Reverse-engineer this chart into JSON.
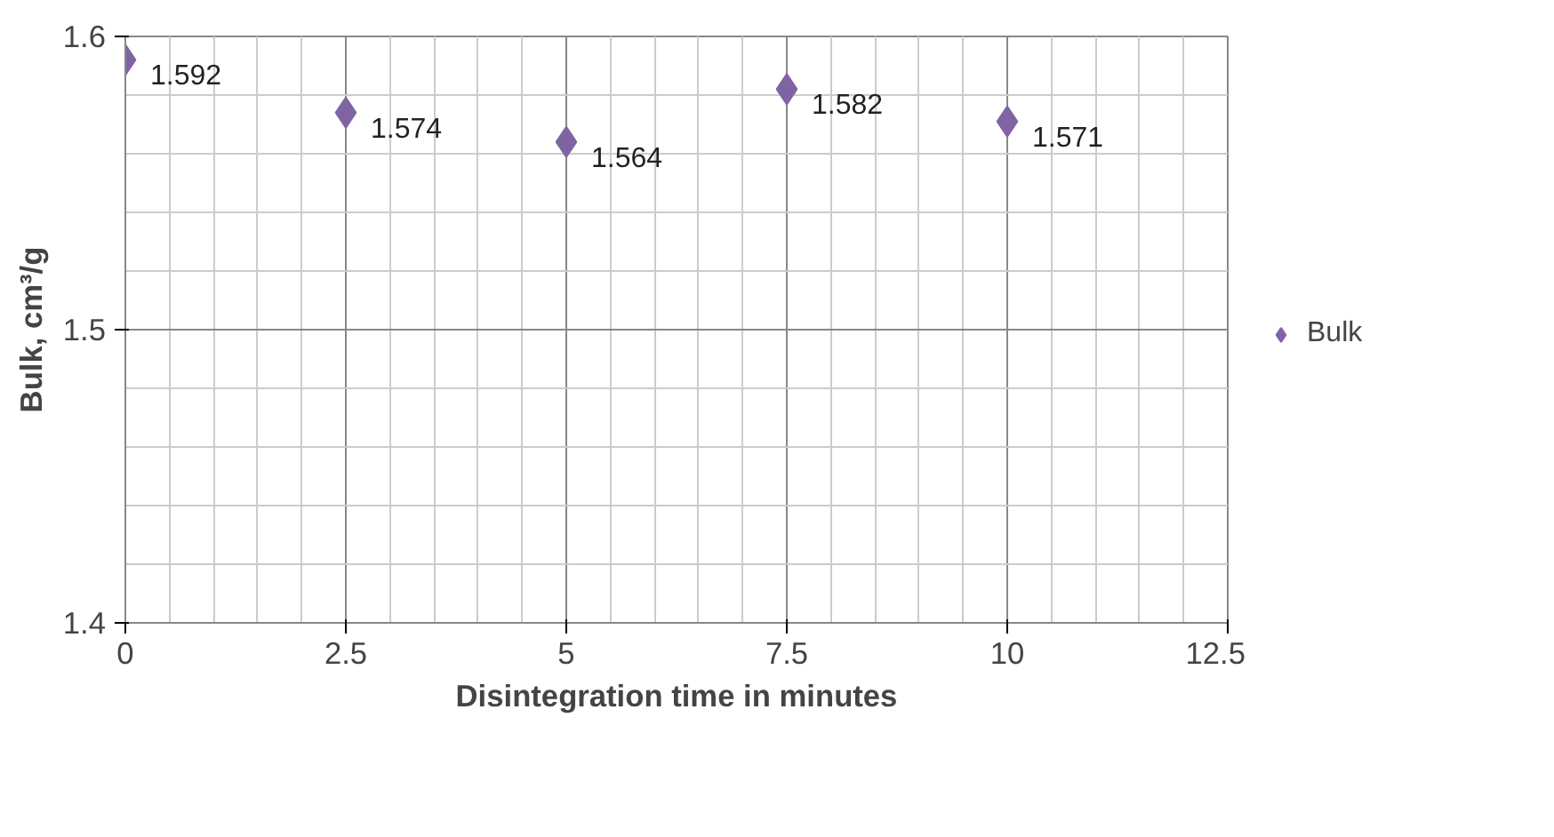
{
  "chart_data": {
    "type": "scatter",
    "xlabel": "Disintegration time in minutes",
    "ylabel": "Bulk, cm³/g",
    "x": [
      0,
      2.5,
      5,
      7.5,
      10
    ],
    "series": [
      {
        "name": "Bulk",
        "color": "#8064a2",
        "values": [
          1.592,
          1.574,
          1.564,
          1.582,
          1.571
        ]
      }
    ],
    "xlim": [
      0,
      12.5
    ],
    "xticks": [
      0,
      2.5,
      5,
      7.5,
      10,
      12.5
    ],
    "ylim": [
      1.4,
      1.6
    ],
    "yticks": [
      1.4,
      1.5,
      1.6
    ],
    "grid": true,
    "legend": "right",
    "marker": "diamond",
    "data_labels": true
  }
}
